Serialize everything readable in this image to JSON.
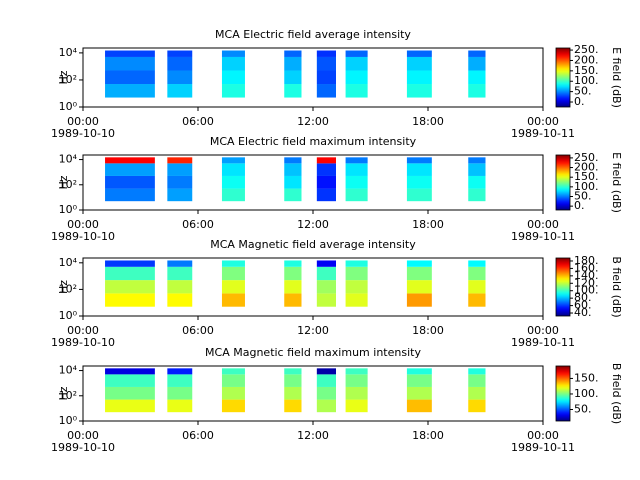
{
  "chart_data": [
    {
      "type": "spectrogram",
      "title": "MCA  Electric field average intensity",
      "ylabel": "Hz",
      "colorbar_label": "E field (dB)",
      "xlim": [
        0,
        24
      ],
      "xticks": [
        {
          "value": 0,
          "label": "00:00"
        },
        {
          "value": 6,
          "label": "06:00"
        },
        {
          "value": 12,
          "label": "12:00"
        },
        {
          "value": 18,
          "label": "18:00"
        },
        {
          "value": 24,
          "label": "00:00"
        }
      ],
      "x_date_labels": [
        {
          "value": 0,
          "label": "1989-10-10"
        },
        {
          "value": 24,
          "label": "1989-10-11"
        }
      ],
      "log_y": true,
      "ylim": [
        1,
        23000
      ],
      "yticks": [
        {
          "value": 1,
          "label": "10⁰"
        },
        {
          "value": 100,
          "label": "10²"
        },
        {
          "value": 10000,
          "label": "10⁴"
        }
      ],
      "ybins": [
        5,
        50,
        500,
        5000,
        15000
      ],
      "colormap": "jet",
      "clim": [
        -24,
        260
      ],
      "cticks": [
        {
          "value": 0,
          "label": "0."
        },
        {
          "value": 50,
          "label": "50."
        },
        {
          "value": 100,
          "label": "100."
        },
        {
          "value": 150,
          "label": "150."
        },
        {
          "value": 200,
          "label": "200."
        },
        {
          "value": 250,
          "label": "250."
        }
      ],
      "segments": [
        {
          "start": 1.15,
          "end": 3.75,
          "values": [
            60,
            40,
            50,
            30
          ]
        },
        {
          "start": 4.4,
          "end": 5.7,
          "values": [
            70,
            50,
            40,
            30
          ]
        },
        {
          "start": 7.25,
          "end": 8.45,
          "values": [
            90,
            80,
            70,
            50
          ]
        },
        {
          "start": 10.5,
          "end": 11.4,
          "values": [
            90,
            70,
            60,
            40
          ]
        },
        {
          "start": 12.2,
          "end": 13.2,
          "values": [
            40,
            30,
            35,
            25
          ]
        },
        {
          "start": 13.7,
          "end": 14.85,
          "values": [
            90,
            80,
            70,
            40
          ]
        },
        {
          "start": 16.9,
          "end": 18.2,
          "values": [
            90,
            80,
            70,
            40
          ]
        },
        {
          "start": 20.1,
          "end": 21.0,
          "values": [
            90,
            80,
            60,
            40
          ]
        }
      ]
    },
    {
      "type": "spectrogram",
      "title": "MCA  Electric field maximum intensity",
      "ylabel": "Hz",
      "colorbar_label": "E field (dB)",
      "xlim": [
        0,
        24
      ],
      "xticks": [
        {
          "value": 0,
          "label": "00:00"
        },
        {
          "value": 6,
          "label": "06:00"
        },
        {
          "value": 12,
          "label": "12:00"
        },
        {
          "value": 18,
          "label": "18:00"
        },
        {
          "value": 24,
          "label": "00:00"
        }
      ],
      "x_date_labels": [
        {
          "value": 0,
          "label": "1989-10-10"
        },
        {
          "value": 24,
          "label": "1989-10-11"
        }
      ],
      "log_y": true,
      "ylim": [
        1,
        23000
      ],
      "yticks": [
        {
          "value": 1,
          "label": "10⁰"
        },
        {
          "value": 100,
          "label": "10²"
        },
        {
          "value": 10000,
          "label": "10⁴"
        }
      ],
      "ybins": [
        5,
        50,
        500,
        5000,
        15000
      ],
      "colormap": "jet",
      "clim": [
        -20,
        265
      ],
      "cticks": [
        {
          "value": 0,
          "label": "0."
        },
        {
          "value": 50,
          "label": "50."
        },
        {
          "value": 100,
          "label": "100."
        },
        {
          "value": 150,
          "label": "150."
        },
        {
          "value": 200,
          "label": "200."
        },
        {
          "value": 250,
          "label": "250."
        }
      ],
      "segments": [
        {
          "start": 1.15,
          "end": 3.75,
          "values": [
            50,
            40,
            60,
            230
          ]
        },
        {
          "start": 4.4,
          "end": 5.7,
          "values": [
            60,
            50,
            60,
            220
          ]
        },
        {
          "start": 7.25,
          "end": 8.45,
          "values": [
            100,
            90,
            80,
            60
          ]
        },
        {
          "start": 10.5,
          "end": 11.4,
          "values": [
            100,
            80,
            70,
            50
          ]
        },
        {
          "start": 12.2,
          "end": 13.2,
          "values": [
            30,
            20,
            30,
            230
          ]
        },
        {
          "start": 13.7,
          "end": 14.85,
          "values": [
            100,
            90,
            80,
            50
          ]
        },
        {
          "start": 16.9,
          "end": 18.2,
          "values": [
            100,
            90,
            80,
            50
          ]
        },
        {
          "start": 20.1,
          "end": 21.0,
          "values": [
            100,
            90,
            70,
            50
          ]
        }
      ]
    },
    {
      "type": "spectrogram",
      "title": "MCA  Magnetic field average intensity",
      "ylabel": "Hz",
      "colorbar_label": "B field (dB)",
      "xlim": [
        0,
        24
      ],
      "xticks": [
        {
          "value": 0,
          "label": "00:00"
        },
        {
          "value": 6,
          "label": "06:00"
        },
        {
          "value": 12,
          "label": "12:00"
        },
        {
          "value": 18,
          "label": "18:00"
        },
        {
          "value": 24,
          "label": "00:00"
        }
      ],
      "x_date_labels": [
        {
          "value": 0,
          "label": "1989-10-10"
        },
        {
          "value": 24,
          "label": "1989-10-11"
        }
      ],
      "log_y": true,
      "ylim": [
        1,
        23000
      ],
      "yticks": [
        {
          "value": 1,
          "label": "10⁰"
        },
        {
          "value": 100,
          "label": "10²"
        },
        {
          "value": 10000,
          "label": "10⁴"
        }
      ],
      "ybins": [
        5,
        50,
        500,
        5000,
        15000
      ],
      "colormap": "jet",
      "clim": [
        32,
        188
      ],
      "cticks": [
        {
          "value": 40,
          "label": "40."
        },
        {
          "value": 60,
          "label": "60."
        },
        {
          "value": 80,
          "label": "80."
        },
        {
          "value": 100,
          "label": "100."
        },
        {
          "value": 120,
          "label": "120."
        },
        {
          "value": 140,
          "label": "140."
        },
        {
          "value": 160,
          "label": "160."
        },
        {
          "value": 180,
          "label": "180."
        }
      ],
      "segments": [
        {
          "start": 1.15,
          "end": 3.75,
          "values": [
            130,
            120,
            100,
            60
          ]
        },
        {
          "start": 4.4,
          "end": 5.7,
          "values": [
            130,
            120,
            100,
            70
          ]
        },
        {
          "start": 7.25,
          "end": 8.45,
          "values": [
            140,
            125,
            110,
            95
          ]
        },
        {
          "start": 10.5,
          "end": 11.4,
          "values": [
            140,
            125,
            110,
            95
          ]
        },
        {
          "start": 12.2,
          "end": 13.2,
          "values": [
            120,
            115,
            100,
            50
          ]
        },
        {
          "start": 13.7,
          "end": 14.85,
          "values": [
            125,
            120,
            110,
            95
          ]
        },
        {
          "start": 16.9,
          "end": 18.2,
          "values": [
            145,
            125,
            110,
            90
          ]
        },
        {
          "start": 20.1,
          "end": 21.0,
          "values": [
            140,
            125,
            110,
            90
          ]
        }
      ]
    },
    {
      "type": "spectrogram",
      "title": "MCA  Magnetic field maximum intensity",
      "ylabel": "Hz",
      "colorbar_label": "B field (dB)",
      "xlim": [
        0,
        24
      ],
      "xticks": [
        {
          "value": 0,
          "label": "00:00"
        },
        {
          "value": 6,
          "label": "06:00"
        },
        {
          "value": 12,
          "label": "12:00"
        },
        {
          "value": 18,
          "label": "18:00"
        },
        {
          "value": 24,
          "label": "00:00"
        }
      ],
      "x_date_labels": [
        {
          "value": 0,
          "label": "1989-10-10"
        },
        {
          "value": 24,
          "label": "1989-10-11"
        }
      ],
      "log_y": true,
      "ylim": [
        1,
        23000
      ],
      "yticks": [
        {
          "value": 1,
          "label": "10⁰"
        },
        {
          "value": 100,
          "label": "10²"
        },
        {
          "value": 10000,
          "label": "10⁴"
        }
      ],
      "ybins": [
        5,
        50,
        500,
        5000,
        15000
      ],
      "colormap": "jet",
      "clim": [
        13,
        190
      ],
      "cticks": [
        {
          "value": 50,
          "label": "50."
        },
        {
          "value": 100,
          "label": "100."
        },
        {
          "value": 150,
          "label": "150."
        }
      ],
      "segments": [
        {
          "start": 1.15,
          "end": 3.75,
          "values": [
            120,
            100,
            90,
            30
          ]
        },
        {
          "start": 4.4,
          "end": 5.7,
          "values": [
            120,
            100,
            90,
            40
          ]
        },
        {
          "start": 7.25,
          "end": 8.45,
          "values": [
            130,
            110,
            100,
            90
          ]
        },
        {
          "start": 10.5,
          "end": 11.4,
          "values": [
            130,
            110,
            100,
            90
          ]
        },
        {
          "start": 12.2,
          "end": 13.2,
          "values": [
            110,
            100,
            90,
            20
          ]
        },
        {
          "start": 13.7,
          "end": 14.85,
          "values": [
            120,
            110,
            100,
            90
          ]
        },
        {
          "start": 16.9,
          "end": 18.2,
          "values": [
            135,
            110,
            100,
            85
          ]
        },
        {
          "start": 20.1,
          "end": 21.0,
          "values": [
            130,
            110,
            100,
            85
          ]
        }
      ]
    }
  ]
}
